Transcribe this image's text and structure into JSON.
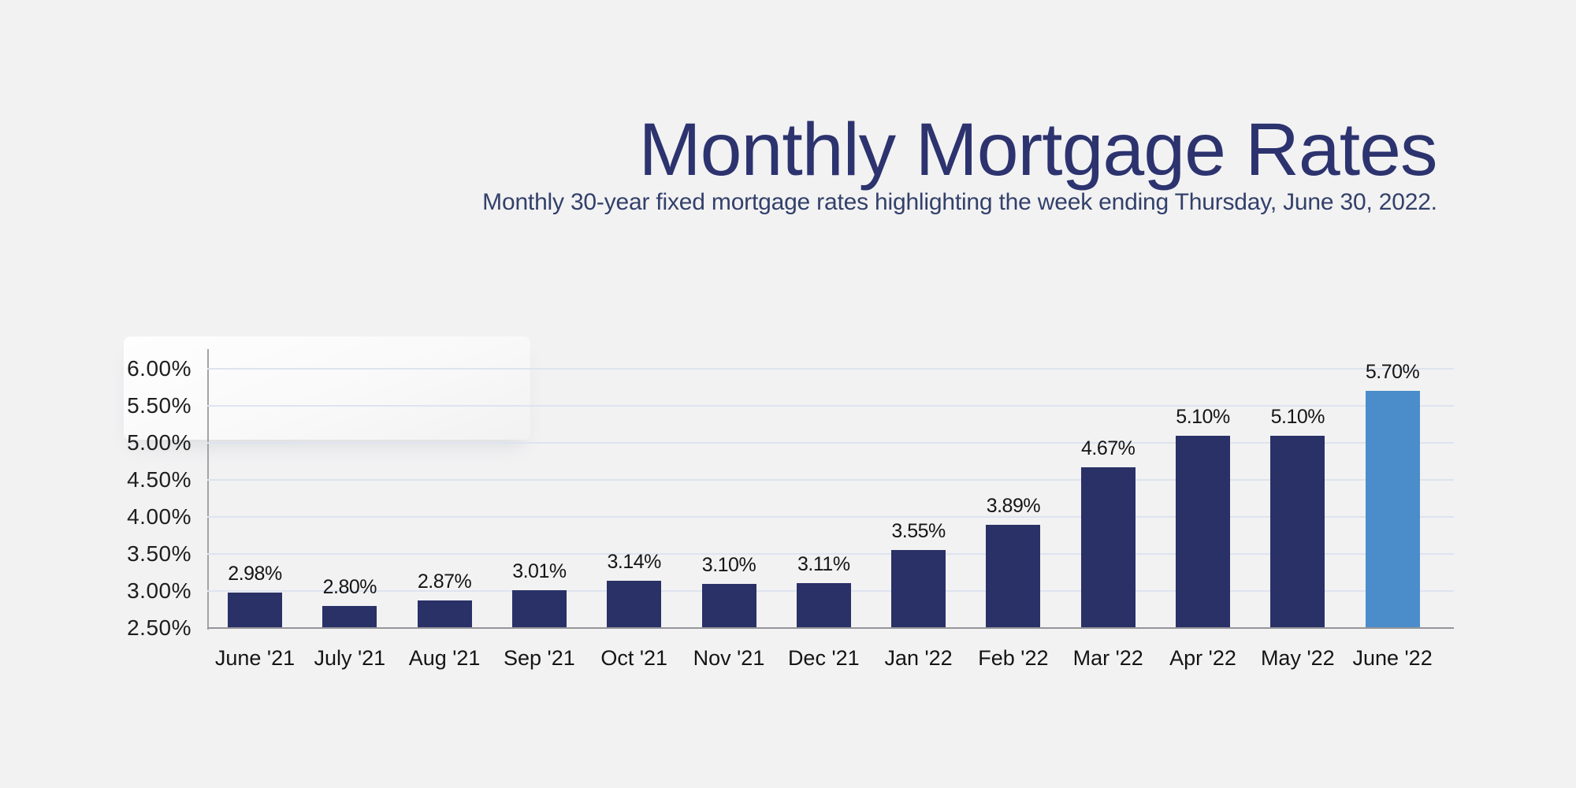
{
  "header": {},
  "colors": {
    "background": "#f2f2f3",
    "title_text": "#2c336e",
    "subtitle_text": "#33406a",
    "gridline": "#dde4ef",
    "axis_line": "#96969a"
  },
  "chart_data": {
    "type": "bar",
    "title": "Monthly Mortgage Rates",
    "subtitle": "Monthly 30-year fixed mortgage rates highlighting the week ending Thursday, June 30, 2022.",
    "categories": [
      "June '21",
      "July '21",
      "Aug '21",
      "Sep '21",
      "Oct '21",
      "Nov '21",
      "Dec '21",
      "Jan '22",
      "Feb '22",
      "Mar '22",
      "Apr '22",
      "May '22",
      "June '22"
    ],
    "values": [
      2.98,
      2.8,
      2.87,
      3.01,
      3.14,
      3.1,
      3.11,
      3.55,
      3.89,
      4.67,
      5.1,
      5.1,
      5.7
    ],
    "value_labels": [
      "2.98%",
      "2.80%",
      "2.87%",
      "3.01%",
      "3.14%",
      "3.10%",
      "3.11%",
      "3.55%",
      "3.89%",
      "4.67%",
      "5.10%",
      "5.10%",
      "5.70%"
    ],
    "y_ticks": [
      "6.00%",
      "5.50%",
      "5.00%",
      "4.50%",
      "4.00%",
      "3.50%",
      "3.00%",
      "2.50%"
    ],
    "ylim": [
      2.5,
      6.0
    ],
    "grid": "horizontal",
    "legend": "none",
    "bar_color": "#293167",
    "highlight_color": "#4b8dcb",
    "highlight_index": 12
  }
}
